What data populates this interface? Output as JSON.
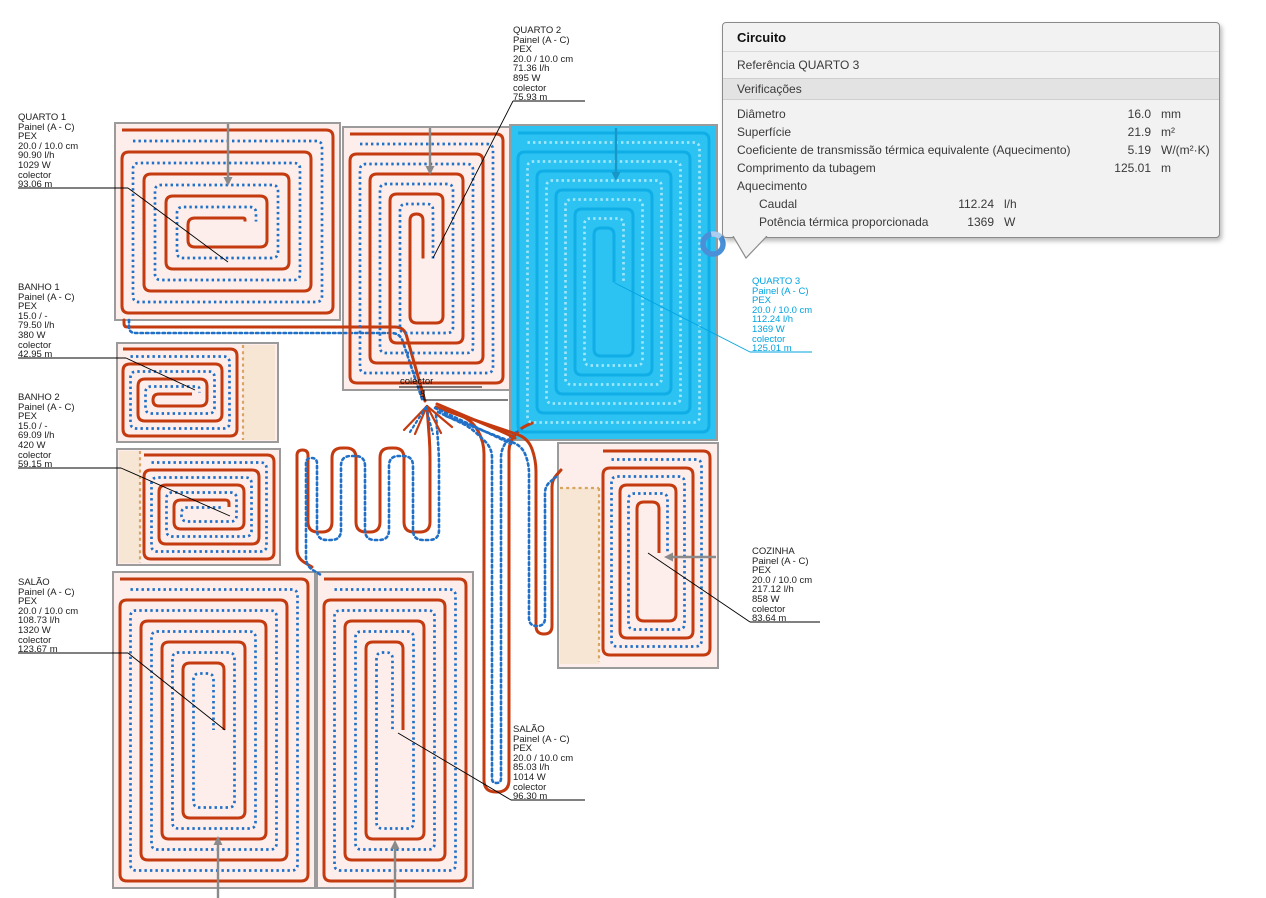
{
  "colors": {
    "supply_pipe": "#c43b10",
    "return_pipe": "#2070c8",
    "room_fill": "#fdeeeb",
    "zone_fill": "#f7e6d4",
    "zone_border": "#d8a55e",
    "wall": "#9b9b9b",
    "highlight_fill": "#2cc3f3",
    "highlight_pipe": "#10aee6",
    "highlight_pipe_light": "#9fe6fb",
    "arrow": "#8a8a8a",
    "highlight_arrow": "#1796c8",
    "leader": "#000000",
    "highlight_text": "#00a3e0",
    "grip": "#4a90d8"
  },
  "collector": {
    "label": "colector",
    "number": "8"
  },
  "labels": [
    {
      "id": "quarto-1",
      "highlight": false,
      "lines": [
        "QUARTO 1",
        "Painel (A - C)",
        "PEX",
        "20.0 / 10.0 cm",
        "90.90 l/h",
        "1029 W",
        "colector",
        "93.06 m"
      ]
    },
    {
      "id": "banho-1",
      "highlight": false,
      "lines": [
        "BANHO 1",
        "Painel (A - C)",
        "PEX",
        "15.0 / -",
        "79.50 l/h",
        "380 W",
        "colector",
        "42.95 m"
      ]
    },
    {
      "id": "banho-2",
      "highlight": false,
      "lines": [
        "BANHO 2",
        "Painel (A - C)",
        "PEX",
        "15.0 / -",
        "69.09 l/h",
        "420 W",
        "colector",
        "59.15 m"
      ]
    },
    {
      "id": "salao-1",
      "highlight": false,
      "lines": [
        "SALÃO",
        "Painel (A - C)",
        "PEX",
        "20.0 / 10.0 cm",
        "108.73 l/h",
        "1320 W",
        "colector",
        "123.67 m"
      ]
    },
    {
      "id": "quarto-2",
      "highlight": false,
      "lines": [
        "QUARTO 2",
        "Painel (A - C)",
        "PEX",
        "20.0 / 10.0 cm",
        "71.36 l/h",
        "895 W",
        "colector",
        "75.93 m"
      ]
    },
    {
      "id": "quarto-3",
      "highlight": true,
      "lines": [
        "QUARTO 3",
        "Painel (A - C)",
        "PEX",
        "20.0 / 10.0 cm",
        "112.24 l/h",
        "1369 W",
        "colector",
        "125.01 m"
      ]
    },
    {
      "id": "cozinha",
      "highlight": false,
      "lines": [
        "COZINHA",
        "Painel (A - C)",
        "PEX",
        "20.0 / 10.0 cm",
        "217.12 l/h",
        "858 W",
        "colector",
        "83.64 m"
      ]
    },
    {
      "id": "salao-2",
      "highlight": false,
      "lines": [
        "SALÃO",
        "Painel (A - C)",
        "PEX",
        "20.0 / 10.0 cm",
        "85.03 l/h",
        "1014 W",
        "colector",
        "96.30 m"
      ]
    }
  ],
  "panel": {
    "title": "Circuito",
    "reference_label": "Referência",
    "reference_value": "QUARTO 3",
    "section": "Verificações",
    "rows": [
      {
        "label": "Diâmetro",
        "value": "16.0",
        "unit": "mm"
      },
      {
        "label": "Superfície",
        "value": "21.9",
        "unit": "m²"
      },
      {
        "label": "Coeficiente de transmissão térmica equivalente (Aquecimento)",
        "value": "5.19",
        "unit": "W/(m²·K)"
      },
      {
        "label": "Comprimento da tubagem",
        "value": "125.01",
        "unit": "m"
      }
    ],
    "group": {
      "label": "Aquecimento",
      "rows": [
        {
          "label": "Caudal",
          "value": "112.24",
          "unit": "l/h"
        },
        {
          "label": "Potência térmica proporcionada",
          "value": "1369",
          "unit": "W"
        }
      ]
    }
  }
}
